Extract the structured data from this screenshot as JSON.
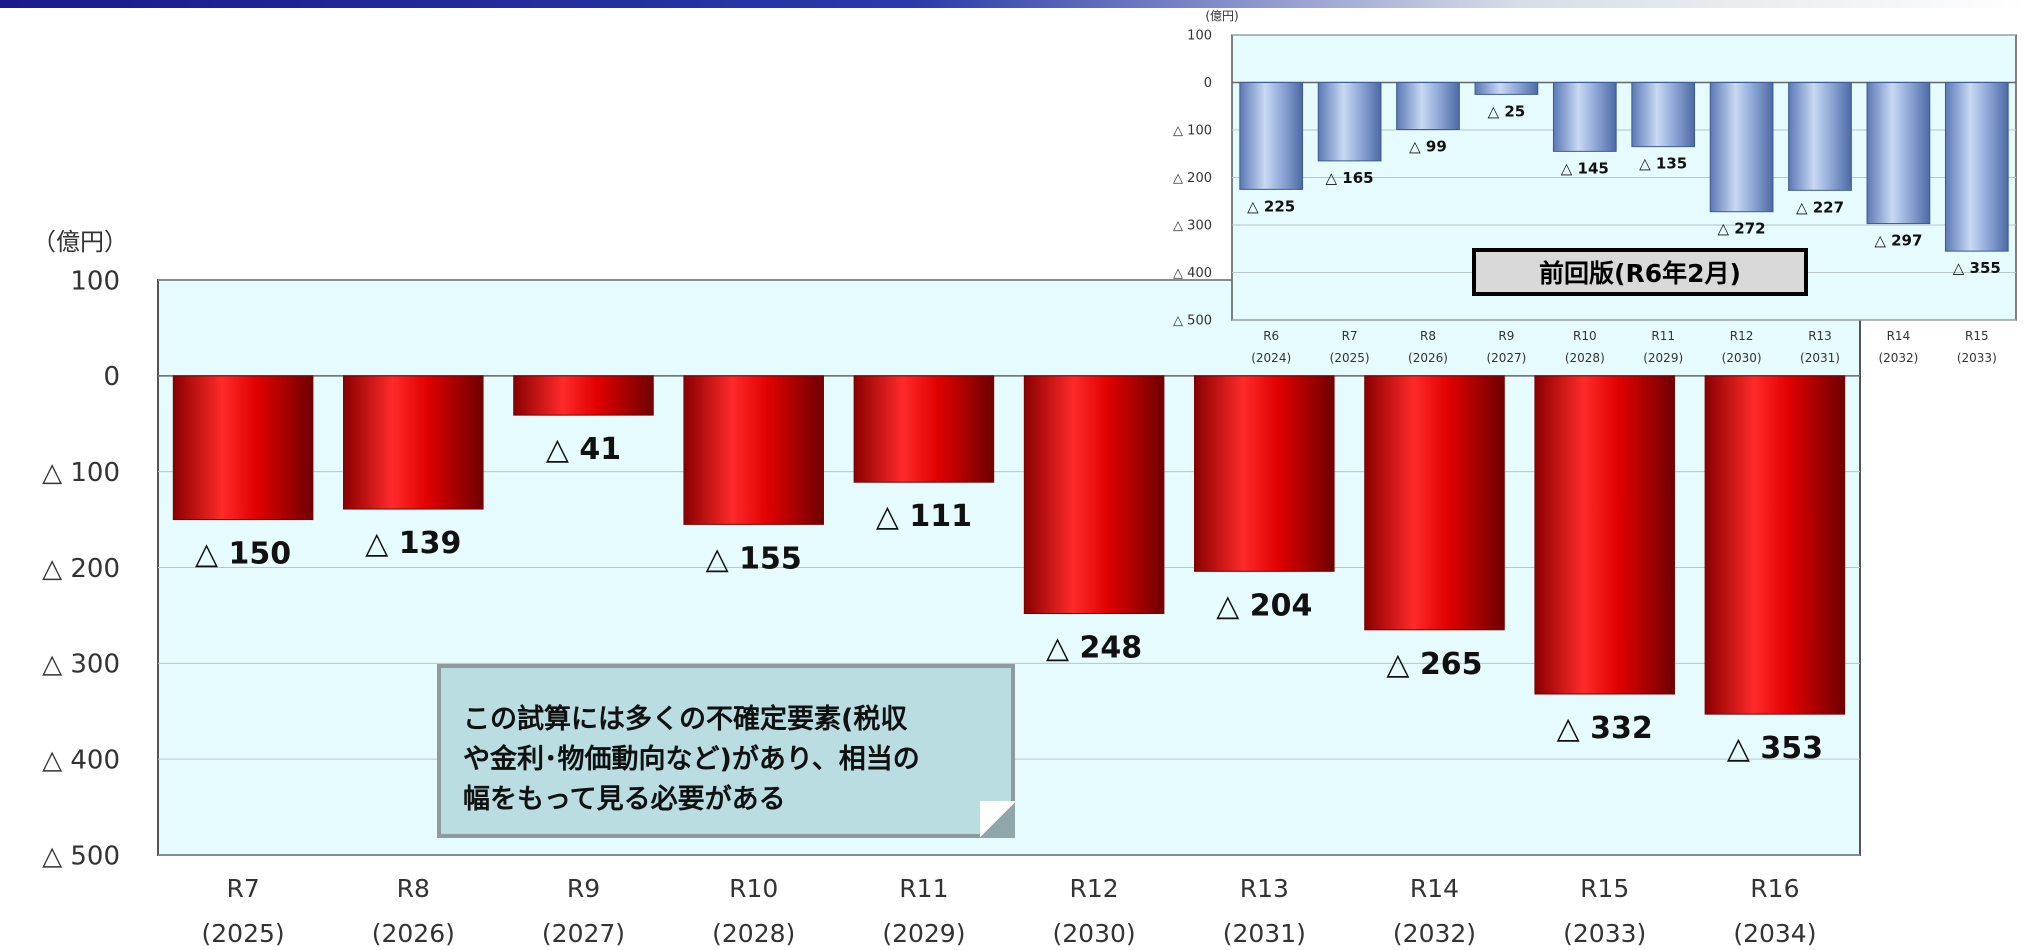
{
  "chart_data": [
    {
      "type": "bar",
      "unit_label": "（億円）",
      "ylim": [
        -500,
        100
      ],
      "y_ticks": [
        {
          "value": 100,
          "label": "100"
        },
        {
          "value": 0,
          "label": "0"
        },
        {
          "value": -100,
          "label": "△ 100"
        },
        {
          "value": -200,
          "label": "△ 200"
        },
        {
          "value": -300,
          "label": "△ 300"
        },
        {
          "value": -400,
          "label": "△ 400"
        },
        {
          "value": -500,
          "label": "△ 500"
        }
      ],
      "categories": [
        {
          "label": "R7",
          "year": "(2025)"
        },
        {
          "label": "R8",
          "year": "(2026)"
        },
        {
          "label": "R9",
          "year": "(2027)"
        },
        {
          "label": "R10",
          "year": "(2028)"
        },
        {
          "label": "R11",
          "year": "(2029)"
        },
        {
          "label": "R12",
          "year": "(2030)"
        },
        {
          "label": "R13",
          "year": "(2031)"
        },
        {
          "label": "R14",
          "year": "(2032)"
        },
        {
          "label": "R15",
          "year": "(2033)"
        },
        {
          "label": "R16",
          "year": "(2034)"
        }
      ],
      "values": [
        -150,
        -139,
        -41,
        -155,
        -111,
        -248,
        -204,
        -265,
        -332,
        -353
      ],
      "data_labels": [
        "△ 150",
        "△ 139",
        "△ 41",
        "△ 155",
        "△ 111",
        "△ 248",
        "△ 204",
        "△ 265",
        "△ 332",
        "△ 353"
      ],
      "bar_color": "#e60000",
      "plot_bg": "#e6fbfd",
      "grid": true
    },
    {
      "type": "bar",
      "unit_label": "(億円)",
      "title": "前回版(R6年2月)",
      "ylim": [
        -500,
        100
      ],
      "y_ticks": [
        {
          "value": 100,
          "label": "100"
        },
        {
          "value": 0,
          "label": "0"
        },
        {
          "value": -100,
          "label": "△ 100"
        },
        {
          "value": -200,
          "label": "△ 200"
        },
        {
          "value": -300,
          "label": "△ 300"
        },
        {
          "value": -400,
          "label": "△ 400"
        },
        {
          "value": -500,
          "label": "△ 500"
        }
      ],
      "categories": [
        {
          "label": "R6",
          "year": "(2024)"
        },
        {
          "label": "R7",
          "year": "(2025)"
        },
        {
          "label": "R8",
          "year": "(2026)"
        },
        {
          "label": "R9",
          "year": "(2027)"
        },
        {
          "label": "R10",
          "year": "(2028)"
        },
        {
          "label": "R11",
          "year": "(2029)"
        },
        {
          "label": "R12",
          "year": "(2030)"
        },
        {
          "label": "R13",
          "year": "(2031)"
        },
        {
          "label": "R14",
          "year": "(2032)"
        },
        {
          "label": "R15",
          "year": "(2033)"
        }
      ],
      "values": [
        -225,
        -165,
        -99,
        -25,
        -145,
        -135,
        -272,
        -227,
        -297,
        -355
      ],
      "data_labels": [
        "△ 225",
        "△ 165",
        "△ 99",
        "△ 25",
        "△ 145",
        "△ 135",
        "△ 272",
        "△ 227",
        "△ 297",
        "△ 355"
      ],
      "bar_color": "#8aa6d6",
      "plot_bg": "#e6fbfd",
      "grid": true
    }
  ],
  "note": {
    "lines": [
      "この試算には多くの不確定要素(税収",
      "や金利･物価動向など)があり、相当の",
      "幅をもって見る必要がある"
    ]
  }
}
